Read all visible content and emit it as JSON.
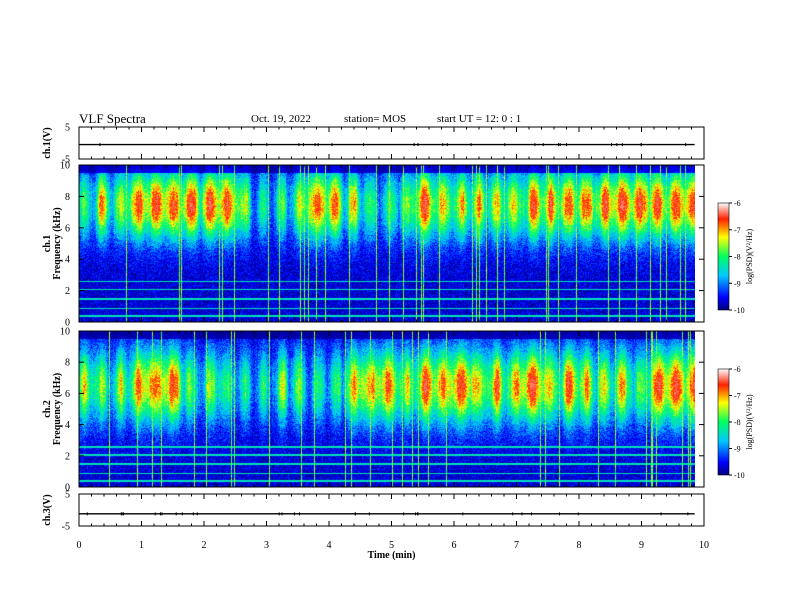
{
  "header": {
    "title": "VLF Spectra",
    "date": "Oct. 19, 2022",
    "station": "station= MOS",
    "start_ut": "start  UT =   12: 0  : 1"
  },
  "chart_data": [
    {
      "type": "line",
      "panel": "ch.1(V)",
      "ylabel": "ch.1(V)",
      "ylim": [
        -5,
        5
      ],
      "y_ticks": [
        "5",
        "-5"
      ],
      "series": [
        {
          "x": [
            0,
            9.85
          ],
          "y": [
            -0.5,
            -0.5
          ]
        }
      ]
    },
    {
      "type": "heatmap",
      "panel": "ch.1 spectrogram",
      "ylabel": "ch.1\nFrequency (kHz)",
      "ylim": [
        0,
        10
      ],
      "y_ticks": [
        "0",
        "2",
        "4",
        "6",
        "8",
        "10"
      ],
      "band_center_khz": 7.5,
      "band_halfwidth_khz": 2.2,
      "colorbar": {
        "label": "log(PSD)(V²/Hz)",
        "range": [
          -10,
          -6
        ],
        "ticks": [
          "-6",
          "-7",
          "-8",
          "-9",
          "-10"
        ]
      }
    },
    {
      "type": "heatmap",
      "panel": "ch.2 spectrogram",
      "ylabel": "ch.2\nFrequency (kHz)",
      "ylim": [
        0,
        10
      ],
      "y_ticks": [
        "0",
        "2",
        "4",
        "6",
        "8",
        "10"
      ],
      "band_center_khz": 6.5,
      "band_halfwidth_khz": 2.4,
      "colorbar": {
        "label": "log(PSD)(V²/Hz)",
        "range": [
          -10,
          -6
        ],
        "ticks": [
          "-6",
          "-7",
          "-8",
          "-9",
          "-10"
        ]
      }
    },
    {
      "type": "line",
      "panel": "ch.3(V)",
      "ylabel": "ch.3(V)",
      "ylim": [
        -5,
        5
      ],
      "y_ticks": [
        "5",
        "-5"
      ],
      "series": [
        {
          "x": [
            0,
            9.85
          ],
          "y": [
            -1.2,
            -1.2
          ]
        }
      ]
    }
  ],
  "xaxis": {
    "label": "Time (min)",
    "range": [
      0,
      10
    ],
    "data_end": 9.85,
    "ticks": [
      "0",
      "1",
      "2",
      "3",
      "4",
      "5",
      "6",
      "7",
      "8",
      "9",
      "10"
    ]
  },
  "colors": {
    "background": "#ffffff",
    "axis": "#000000"
  }
}
